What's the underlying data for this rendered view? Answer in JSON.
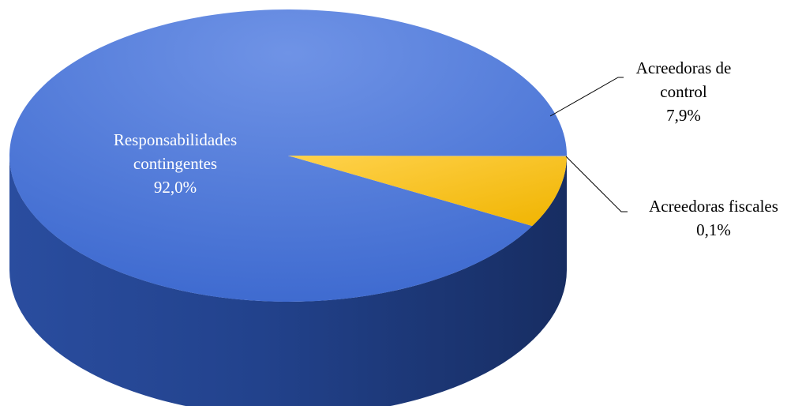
{
  "chart_data": {
    "type": "pie",
    "title": "",
    "slices": [
      {
        "name": "Responsabilidades contingentes",
        "label_lines": [
          "Responsabilidades",
          "contingentes"
        ],
        "value": 92.0,
        "value_text": "92,0%",
        "color": "#4a74d6"
      },
      {
        "name": "Acreedoras de control",
        "label_lines": [
          "Acreedoras de",
          "control"
        ],
        "value": 7.9,
        "value_text": "7,9%",
        "color": "#ffc000"
      },
      {
        "name": "Acreedoras fiscales",
        "label_lines": [
          "Acreedoras fiscales"
        ],
        "value": 0.1,
        "value_text": "0,1%",
        "color": "#a5a5a5"
      }
    ],
    "legend": "none",
    "style": "3d"
  }
}
